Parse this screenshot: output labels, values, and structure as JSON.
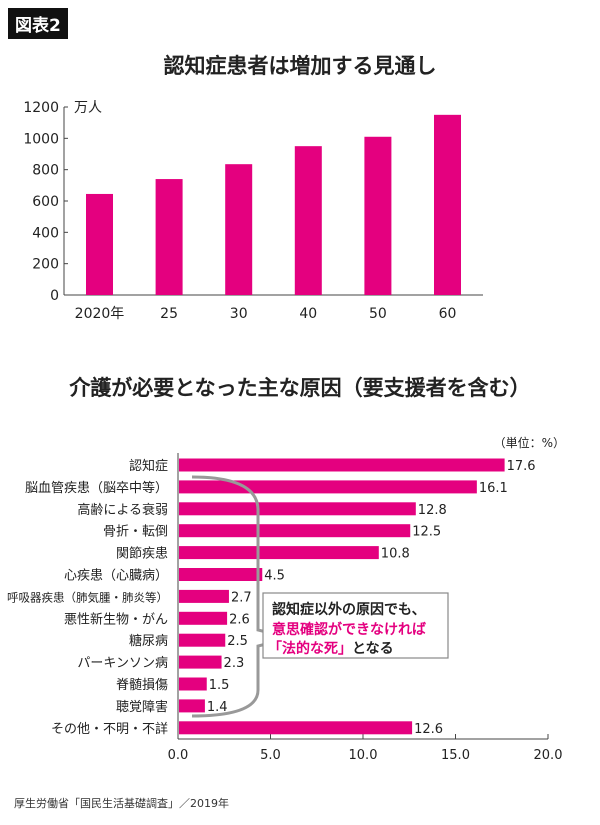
{
  "badge": "図表2",
  "source": "厚生労働省「国民生活基礎調査」／2019年",
  "colors": {
    "bar": "#e4007f",
    "axis": "#444444",
    "brace": "#999999"
  },
  "chart_data": [
    {
      "type": "bar",
      "title": "認知症患者は増加する見通し",
      "ylabel": "万人",
      "categories": [
        "2020年",
        "25",
        "30",
        "40",
        "50",
        "60"
      ],
      "values": [
        645,
        740,
        835,
        950,
        1010,
        1150
      ],
      "ylim": [
        0,
        1200
      ],
      "yticks": [
        0,
        200,
        400,
        600,
        800,
        1000,
        1200
      ],
      "grid": false
    },
    {
      "type": "bar",
      "orientation": "horizontal",
      "title": "介護が必要となった主な原因（要支援者を含む）",
      "unit": "（単位：%）",
      "categories": [
        "認知症",
        "脳血管疾患（脳卒中等）",
        "高齢による衰弱",
        "骨折・転倒",
        "関節疾患",
        "心疾患（心臓病）",
        "呼吸器疾患（肺気腫・肺炎等）",
        "悪性新生物・がん",
        "糖尿病",
        "パーキンソン病",
        "脊髄損傷",
        "聴覚障害",
        "その他・不明・不詳"
      ],
      "values": [
        17.6,
        16.1,
        12.8,
        12.5,
        10.8,
        4.5,
        2.7,
        2.6,
        2.5,
        2.3,
        1.5,
        1.4,
        12.6
      ],
      "value_labels": [
        "17.6",
        "16.1",
        "12.8",
        "12.5",
        "10.8",
        "4.5",
        "2.7",
        "2.6",
        "2.5",
        "2.3",
        "1.5",
        "1.4",
        "12.6"
      ],
      "xlim": [
        0,
        20
      ],
      "xticks": [
        "0.0",
        "5.0",
        "10.0",
        "15.0",
        "20.0"
      ],
      "grid": false,
      "annotation": {
        "line1": "認知症以外の原因でも、",
        "line2": "意思確認ができなければ",
        "line3_pink": "「法的な死」",
        "line3_rest": "となる"
      }
    }
  ]
}
